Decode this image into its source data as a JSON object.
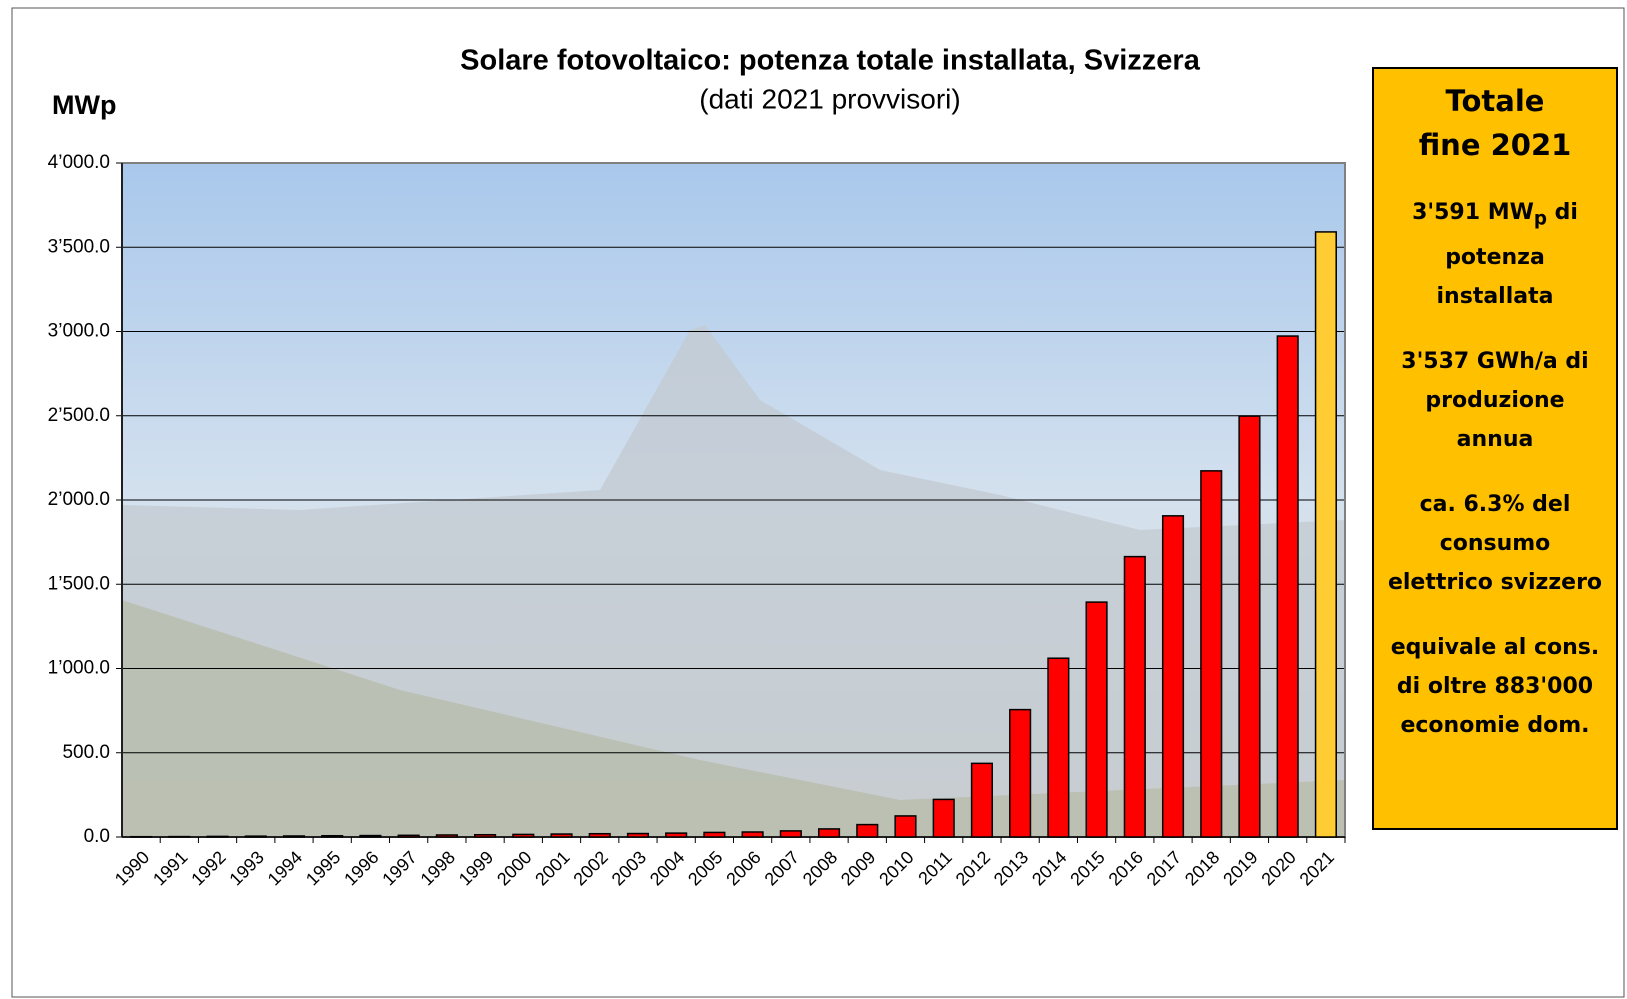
{
  "chart_data": {
    "type": "bar",
    "title": "Solare fotovoltaico: potenza totale installata, Svizzera",
    "subtitle": "(dati 2021 provvisori)",
    "y_label": "MWp",
    "categories": [
      "1990",
      "1991",
      "1992",
      "1993",
      "1994",
      "1995",
      "1996",
      "1997",
      "1998",
      "1999",
      "2000",
      "2001",
      "2002",
      "2003",
      "2004",
      "2005",
      "2006",
      "2007",
      "2008",
      "2009",
      "2010",
      "2011",
      "2012",
      "2013",
      "2014",
      "2015",
      "2016",
      "2017",
      "2018",
      "2019",
      "2020",
      "2021"
    ],
    "values": [
      1.8,
      2.4,
      3.6,
      5,
      6,
      7.5,
      8.5,
      10,
      12,
      13.4,
      15.3,
      17.6,
      19.5,
      20.5,
      23.1,
      27.1,
      29.7,
      36.2,
      47.9,
      73.6,
      125.1,
      223,
      437,
      756,
      1061,
      1394,
      1664,
      1906,
      2173,
      2498,
      2973,
      3591
    ],
    "colors": [
      "#ff0000",
      "#ff0000",
      "#ff0000",
      "#ff0000",
      "#ff0000",
      "#ff0000",
      "#ff0000",
      "#ff0000",
      "#ff0000",
      "#ff0000",
      "#ff0000",
      "#ff0000",
      "#ff0000",
      "#ff0000",
      "#ff0000",
      "#ff0000",
      "#ff0000",
      "#ff0000",
      "#ff0000",
      "#ff0000",
      "#ff0000",
      "#ff0000",
      "#ff0000",
      "#ff0000",
      "#ff0000",
      "#ff0000",
      "#ff0000",
      "#ff0000",
      "#ff0000",
      "#ff0000",
      "#ff0000",
      "#ffcc33"
    ],
    "ylim": [
      0,
      4000
    ],
    "yticks": [
      {
        "value": 0,
        "label": "0.0"
      },
      {
        "value": 500,
        "label": "500.0"
      },
      {
        "value": 1000,
        "label": "1’000.0"
      },
      {
        "value": 1500,
        "label": "1’500.0"
      },
      {
        "value": 2000,
        "label": "2’000.0"
      },
      {
        "value": 2500,
        "label": "2’500.0"
      },
      {
        "value": 3000,
        "label": "3’000.0"
      },
      {
        "value": 3500,
        "label": "3’500.0"
      },
      {
        "value": 4000,
        "label": "4’000.0"
      }
    ],
    "grid": true
  },
  "box": {
    "title": [
      "Totale",
      "fine 2021"
    ],
    "paragraphs": [
      [
        {
          "text": "3'591 MW",
          "sub": "p",
          "after": " di"
        },
        "potenza",
        "installata"
      ],
      [
        "3'537 GWh/a di",
        "produzione",
        "annua"
      ],
      [
        "ca. 6.3% del",
        "consumo",
        "elettrico svizzero"
      ],
      [
        "equivale al cons.",
        "di oltre 883'000",
        "economie dom."
      ]
    ]
  }
}
